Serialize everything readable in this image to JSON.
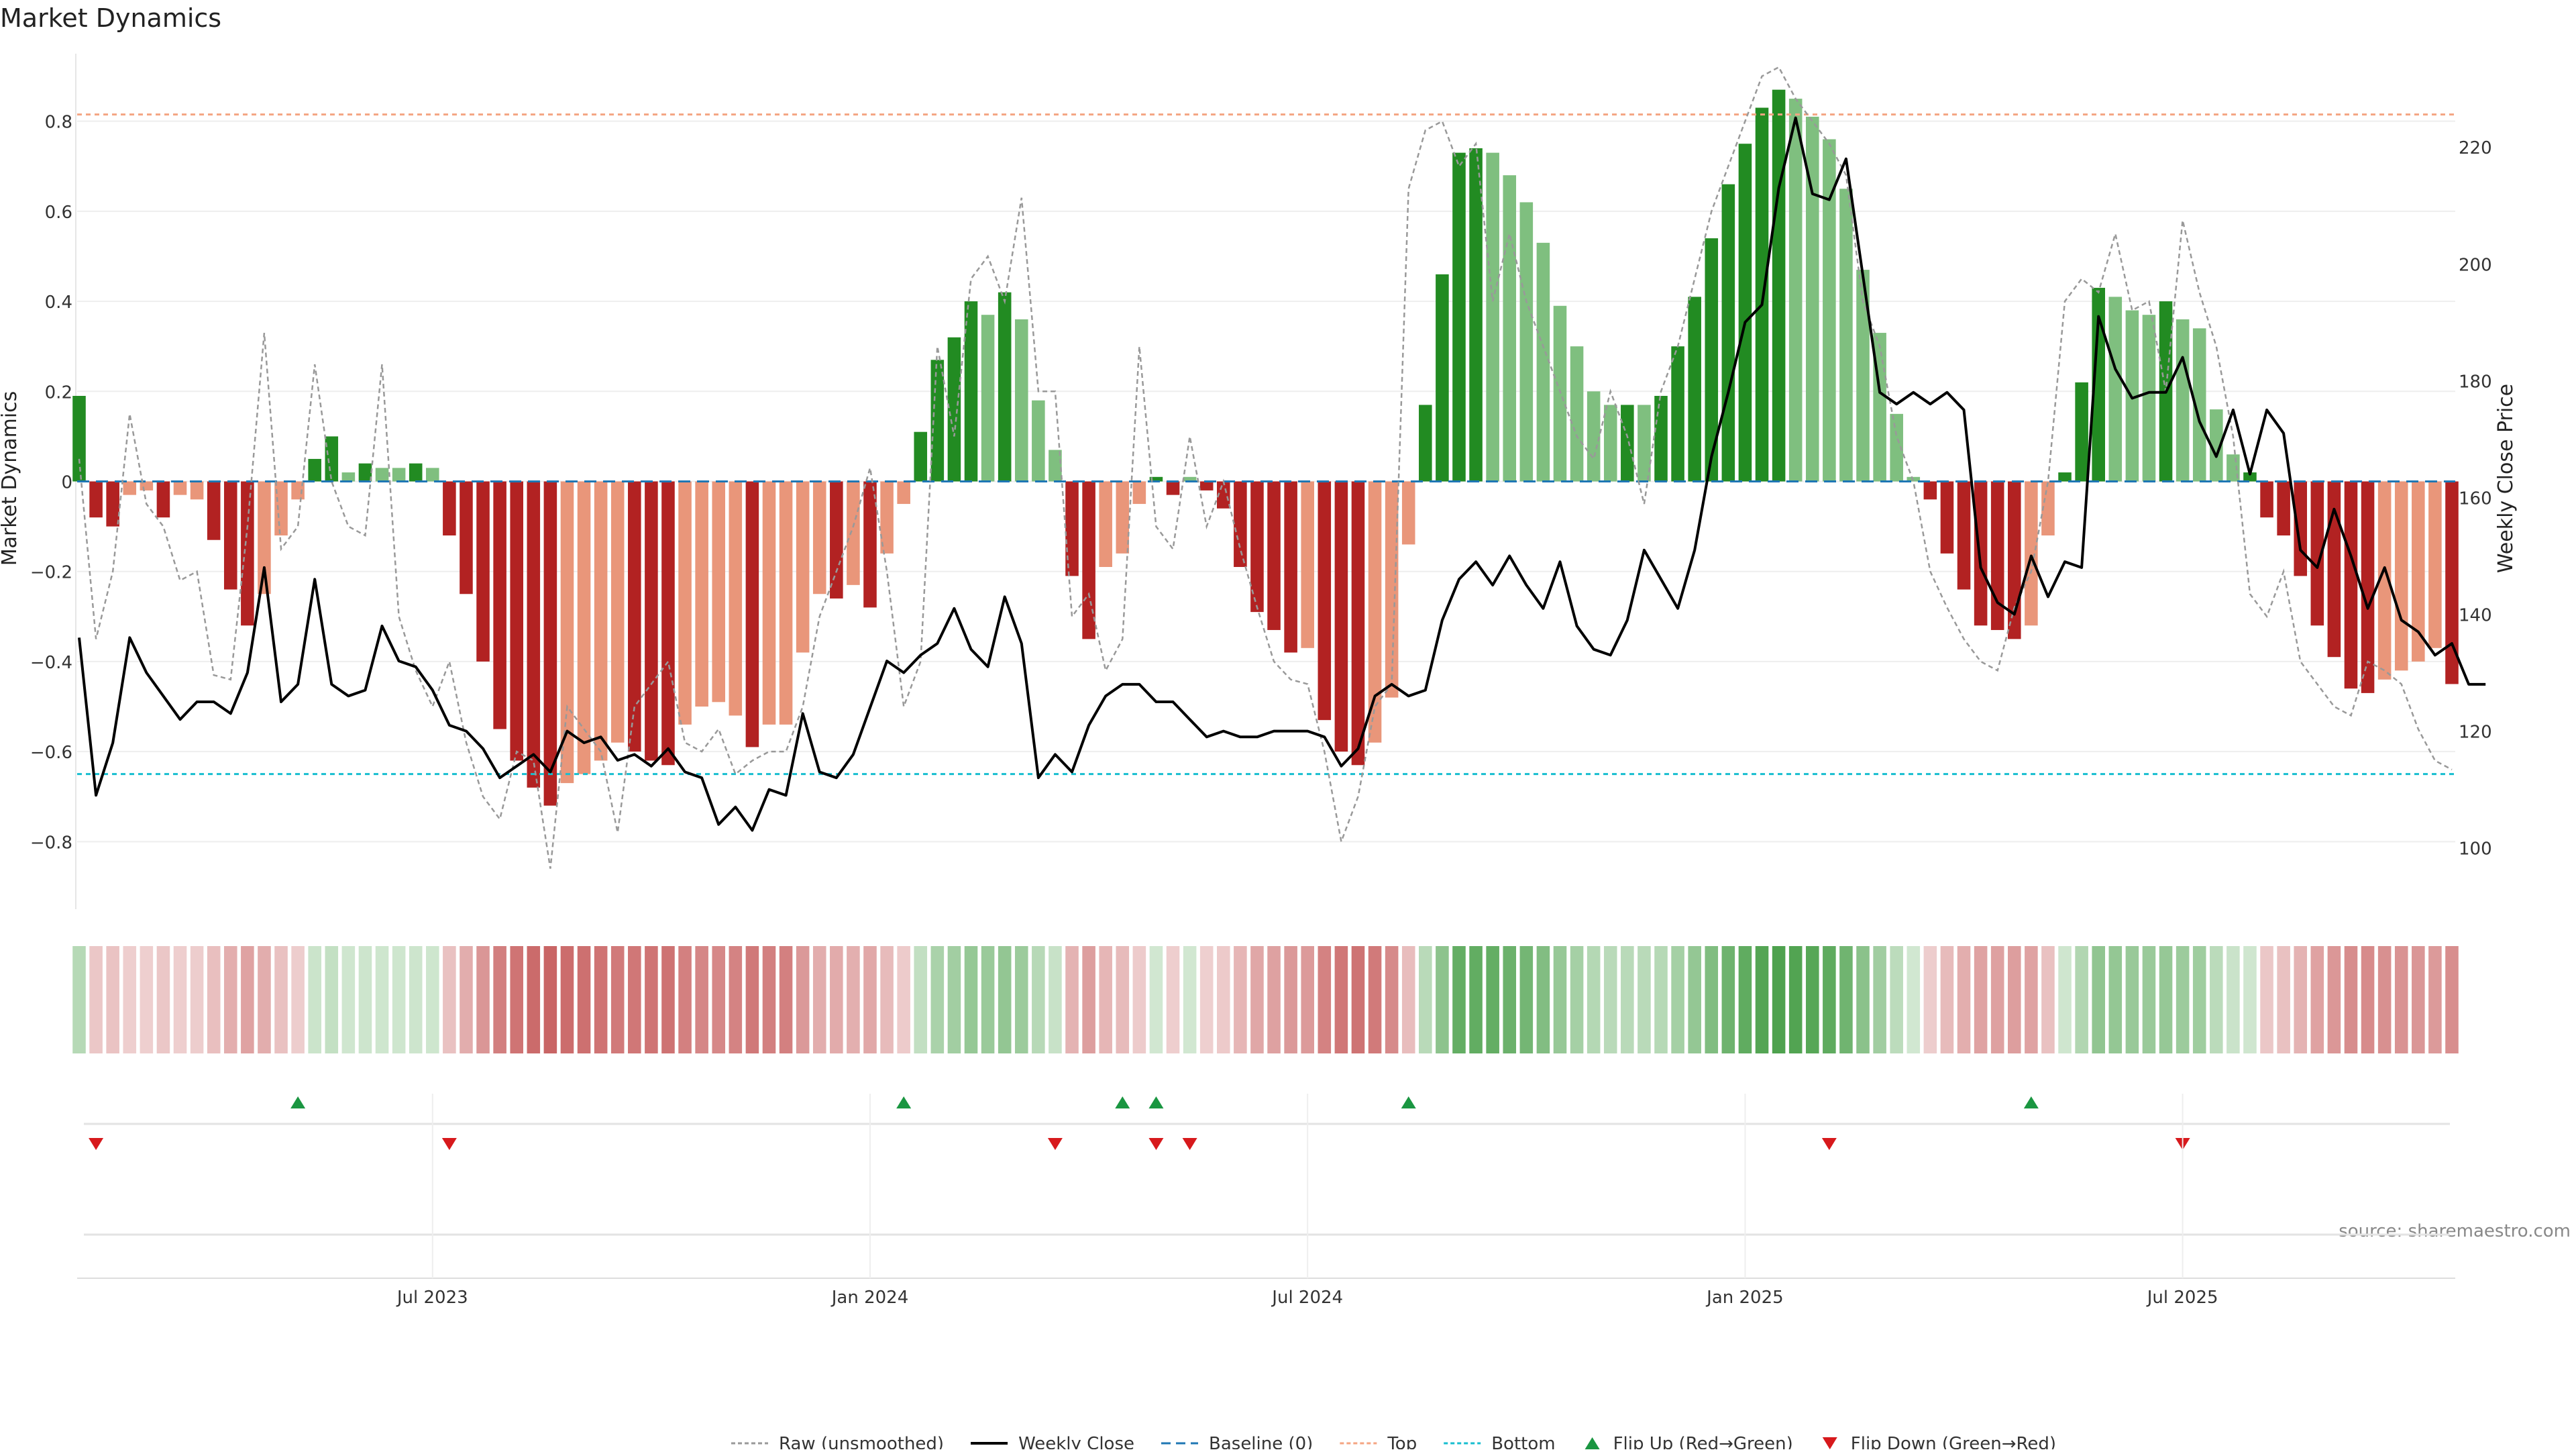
{
  "chart_data": {
    "type": "bar",
    "title": "Market Dynamics",
    "source": "source: sharemaestro.com",
    "ylabel": "Market Dynamics",
    "y2label": "Weekly Close Price",
    "ylim": [
      -0.95,
      0.95
    ],
    "y2lim": [
      89.5,
      236
    ],
    "yticks": [
      -0.8,
      -0.6,
      -0.4,
      -0.2,
      0,
      0.2,
      0.4,
      0.6,
      0.8
    ],
    "ytick_labels": [
      "−0.8",
      "−0.6",
      "−0.4",
      "−0.2",
      "0",
      "0.2",
      "0.4",
      "0.6",
      "0.8"
    ],
    "y2ticks": [
      100,
      120,
      140,
      160,
      180,
      200,
      220
    ],
    "y2tick_labels": [
      "100",
      "120",
      "140",
      "160",
      "180",
      "200",
      "220"
    ],
    "xticks": [
      {
        "label": "Jul 2023",
        "index": 21
      },
      {
        "label": "Jan 2024",
        "index": 47
      },
      {
        "label": "Jul 2024",
        "index": 73
      },
      {
        "label": "Jan 2025",
        "index": 99
      },
      {
        "label": "Jul 2025",
        "index": 125
      }
    ],
    "top_line": 0.815,
    "bottom_line": -0.65,
    "colors": {
      "strong_up": "#228b22",
      "weak_up": "#7fbf7f",
      "strong_down": "#b22222",
      "weak_down": "#e9967a",
      "raw": "#999999",
      "close": "#000000",
      "baseline": "#1f77b4",
      "top": "#f4a582",
      "bottom": "#17becf",
      "flip_up": "#1a9641",
      "flip_down": "#d7191c"
    },
    "dynamics": [
      0.19,
      -0.08,
      -0.1,
      -0.03,
      -0.02,
      -0.08,
      -0.03,
      -0.04,
      -0.13,
      -0.24,
      -0.32,
      -0.25,
      -0.12,
      -0.04,
      0.05,
      0.1,
      0.02,
      0.04,
      0.03,
      0.03,
      0.04,
      0.03,
      -0.12,
      -0.25,
      -0.4,
      -0.55,
      -0.62,
      -0.68,
      -0.72,
      -0.67,
      -0.65,
      -0.62,
      -0.58,
      -0.6,
      -0.62,
      -0.63,
      -0.54,
      -0.5,
      -0.49,
      -0.52,
      -0.59,
      -0.54,
      -0.54,
      -0.38,
      -0.25,
      -0.26,
      -0.23,
      -0.28,
      -0.16,
      -0.05,
      0.11,
      0.27,
      0.32,
      0.4,
      0.37,
      0.42,
      0.36,
      0.18,
      0.07,
      -0.21,
      -0.35,
      -0.19,
      -0.16,
      -0.05,
      0.01,
      -0.03,
      0.01,
      -0.02,
      -0.06,
      -0.19,
      -0.29,
      -0.33,
      -0.38,
      -0.37,
      -0.53,
      -0.6,
      -0.63,
      -0.58,
      -0.48,
      -0.14,
      0.17,
      0.46,
      0.73,
      0.74,
      0.73,
      0.68,
      0.62,
      0.53,
      0.39,
      0.3,
      0.2,
      0.17,
      0.17,
      0.17,
      0.19,
      0.3,
      0.41,
      0.54,
      0.66,
      0.75,
      0.83,
      0.87,
      0.85,
      0.81,
      0.76,
      0.65,
      0.47,
      0.33,
      0.15,
      0.01,
      -0.04,
      -0.16,
      -0.24,
      -0.32,
      -0.33,
      -0.35,
      -0.32,
      -0.12,
      0.02,
      0.22,
      0.43,
      0.41,
      0.38,
      0.37,
      0.4,
      0.36,
      0.34,
      0.16,
      0.06,
      0.02,
      -0.08,
      -0.12,
      -0.21,
      -0.32,
      -0.39,
      -0.46,
      -0.47,
      -0.44,
      -0.42,
      -0.4,
      -0.37,
      -0.45
    ],
    "strength": [
      2,
      2,
      2,
      1,
      1,
      2,
      1,
      1,
      2,
      2,
      2,
      1,
      1,
      1,
      2,
      2,
      1,
      2,
      1,
      1,
      2,
      1,
      2,
      2,
      2,
      2,
      2,
      2,
      2,
      1,
      1,
      1,
      1,
      2,
      2,
      2,
      1,
      1,
      1,
      1,
      2,
      1,
      1,
      1,
      1,
      2,
      1,
      2,
      1,
      1,
      2,
      2,
      2,
      2,
      1,
      2,
      1,
      1,
      1,
      2,
      2,
      1,
      1,
      1,
      2,
      2,
      1,
      2,
      2,
      2,
      2,
      2,
      2,
      1,
      2,
      2,
      2,
      1,
      1,
      1,
      2,
      2,
      2,
      2,
      1,
      1,
      1,
      1,
      1,
      1,
      1,
      1,
      2,
      1,
      2,
      2,
      2,
      2,
      2,
      2,
      2,
      2,
      1,
      1,
      1,
      1,
      1,
      1,
      1,
      1,
      2,
      2,
      2,
      2,
      2,
      2,
      1,
      1,
      2,
      2,
      2,
      1,
      1,
      1,
      2,
      1,
      1,
      1,
      1,
      2,
      2,
      2,
      2,
      2,
      2,
      2,
      2,
      1,
      1,
      1,
      1,
      2
    ],
    "raw": [
      0.05,
      -0.35,
      -0.2,
      0.15,
      -0.05,
      -0.1,
      -0.22,
      -0.2,
      -0.43,
      -0.44,
      -0.1,
      0.33,
      -0.15,
      -0.1,
      0.26,
      0.0,
      -0.1,
      -0.12,
      0.26,
      -0.3,
      -0.42,
      -0.5,
      -0.4,
      -0.58,
      -0.7,
      -0.75,
      -0.6,
      -0.62,
      -0.86,
      -0.5,
      -0.55,
      -0.6,
      -0.78,
      -0.5,
      -0.45,
      -0.4,
      -0.58,
      -0.6,
      -0.55,
      -0.65,
      -0.62,
      -0.6,
      -0.6,
      -0.5,
      -0.3,
      -0.2,
      -0.1,
      0.03,
      -0.2,
      -0.5,
      -0.4,
      0.3,
      0.1,
      0.45,
      0.5,
      0.4,
      0.63,
      0.2,
      0.2,
      -0.3,
      -0.25,
      -0.42,
      -0.35,
      0.3,
      -0.1,
      -0.15,
      0.1,
      -0.1,
      0.0,
      -0.15,
      -0.28,
      -0.4,
      -0.44,
      -0.45,
      -0.6,
      -0.8,
      -0.7,
      -0.5,
      -0.45,
      0.65,
      0.78,
      0.8,
      0.7,
      0.75,
      0.4,
      0.55,
      0.4,
      0.3,
      0.2,
      0.1,
      0.05,
      0.2,
      0.1,
      -0.05,
      0.2,
      0.3,
      0.45,
      0.6,
      0.7,
      0.8,
      0.9,
      0.92,
      0.85,
      0.8,
      0.75,
      0.68,
      0.4,
      0.3,
      0.1,
      0.0,
      -0.2,
      -0.28,
      -0.35,
      -0.4,
      -0.42,
      -0.28,
      -0.2,
      0.0,
      0.4,
      0.45,
      0.42,
      0.55,
      0.38,
      0.4,
      0.2,
      0.58,
      0.42,
      0.3,
      0.1,
      -0.25,
      -0.3,
      -0.2,
      -0.4,
      -0.45,
      -0.5,
      -0.52,
      -0.4,
      -0.42,
      -0.45,
      -0.55,
      -0.62,
      -0.64
    ],
    "close": [
      136,
      109,
      118,
      136,
      130,
      126,
      122,
      125,
      125,
      123,
      130,
      148,
      125,
      128,
      146,
      128,
      126,
      127,
      138,
      132,
      131,
      127,
      121,
      120,
      117,
      112,
      114,
      116,
      113,
      120,
      118,
      119,
      115,
      116,
      114,
      117,
      113,
      112,
      104,
      107,
      103,
      110,
      109,
      123,
      113,
      112,
      116,
      124,
      132,
      130,
      133,
      135,
      141,
      134,
      131,
      143,
      135,
      112,
      116,
      113,
      121,
      126,
      128,
      128,
      125,
      125,
      122,
      119,
      120,
      119,
      119,
      120,
      120,
      120,
      119,
      114,
      117,
      126,
      128,
      126,
      127,
      139,
      146,
      149,
      145,
      150,
      145,
      141,
      149,
      138,
      134,
      133,
      139,
      151,
      146,
      141,
      151,
      167,
      178,
      190,
      193,
      213,
      225,
      212,
      211,
      218,
      198,
      178,
      176,
      178,
      176,
      178,
      175,
      148,
      142,
      140,
      150,
      143,
      149,
      148,
      191,
      182,
      177,
      178,
      178,
      184,
      173,
      167,
      175,
      164,
      175,
      171,
      151,
      148,
      158,
      150,
      141,
      148,
      139,
      137,
      133,
      135,
      128,
      128
    ],
    "flips_up": [
      13,
      49,
      62,
      64,
      79,
      116
    ],
    "flips_down": [
      1,
      22,
      58,
      64,
      66,
      104,
      125
    ],
    "legend": [
      {
        "label": "Raw (unsmoothed)",
        "kind": "raw"
      },
      {
        "label": "Weekly Close",
        "kind": "close"
      },
      {
        "label": "Baseline (0)",
        "kind": "baseline"
      },
      {
        "label": "Top",
        "kind": "top"
      },
      {
        "label": "Bottom",
        "kind": "bottom"
      },
      {
        "label": "Flip Up (Red→Green)",
        "kind": "flip_up"
      },
      {
        "label": "Flip Down (Green→Red)",
        "kind": "flip_down"
      }
    ]
  }
}
